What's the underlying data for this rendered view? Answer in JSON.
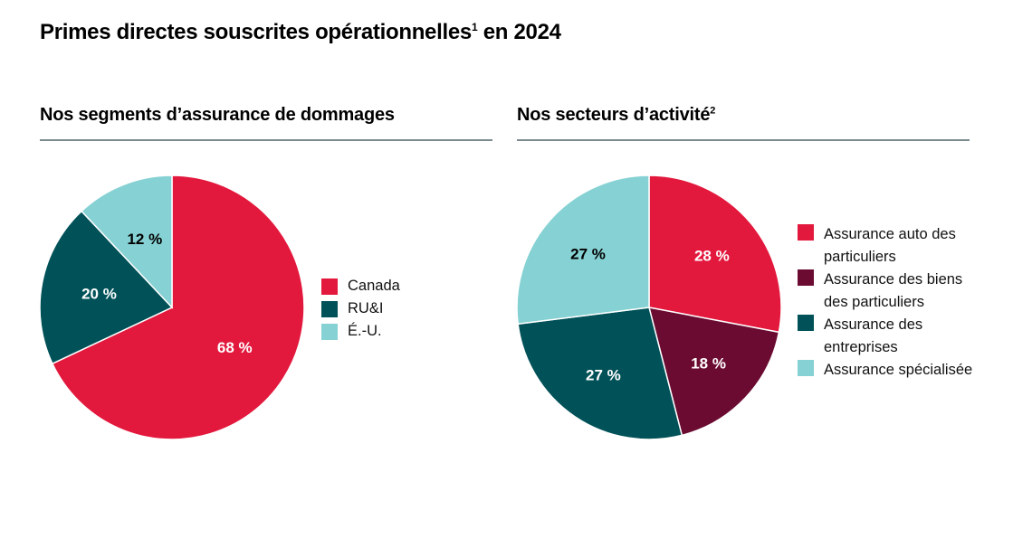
{
  "title": "Primes directes souscrites opérationnelles",
  "title_sup": "1",
  "title_suffix": " en 2024",
  "chart_data": [
    {
      "type": "pie",
      "title": "Nos segments d’assurance de dommages",
      "title_sup": "",
      "categories": [
        "Canada",
        "RU&I",
        "É.-U."
      ],
      "values": [
        68,
        20,
        12
      ],
      "labels": [
        "68 %",
        "20 %",
        "12 %"
      ],
      "colors": [
        "#E3183D",
        "#005158",
        "#86D1D3"
      ],
      "legend": "right"
    },
    {
      "type": "pie",
      "title": "Nos secteurs d’activité",
      "title_sup": "2",
      "categories": [
        "Assurance auto des particuliers",
        "Assurance des biens des particuliers",
        "Assurance des entreprises",
        "Assurance spécialisée"
      ],
      "values": [
        28,
        18,
        27,
        27
      ],
      "labels": [
        "28 %",
        "18 %",
        "27 %",
        "27 %"
      ],
      "colors": [
        "#E3183D",
        "#6B0B31",
        "#005158",
        "#86D1D3"
      ],
      "legend": "right"
    }
  ]
}
